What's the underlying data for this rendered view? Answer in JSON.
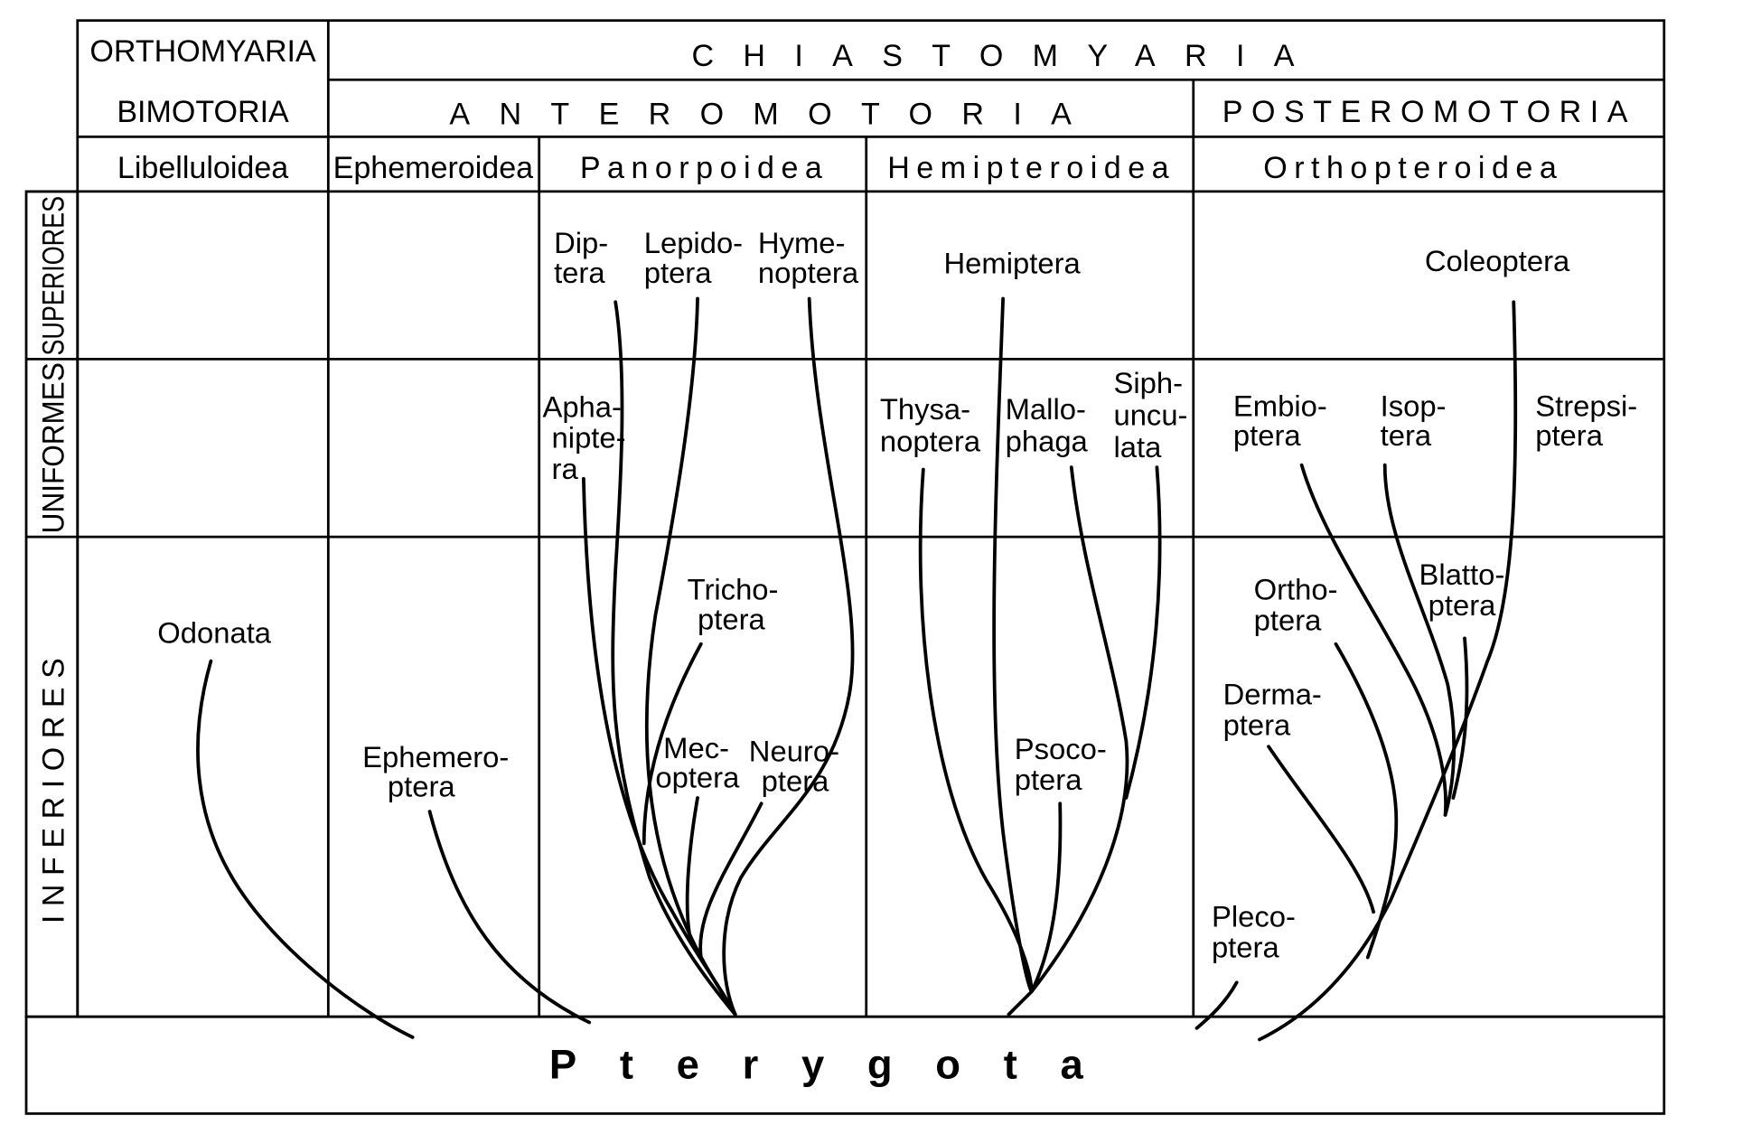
{
  "header": {
    "row1": [
      "ORTHOMYARIA",
      "CHIASTOMYARIA"
    ],
    "row2": [
      "BIMOTORIA",
      "ANTEROMOTORIA",
      "POSTEROMOTORIA"
    ],
    "row3": [
      "Libelluloidea",
      "Ephemeroidea",
      "Panorpoidea",
      "Hemipteroidea",
      "Orthopteroidea"
    ]
  },
  "row_labels": [
    "SUPERIORES",
    "UNIFORMES",
    "INFERIORES"
  ],
  "taxa": [
    {
      "lines": [
        "Odonata"
      ]
    },
    {
      "lines": [
        "Ephemero-",
        "ptera"
      ]
    },
    {
      "lines": [
        "Dip-",
        "tera"
      ]
    },
    {
      "lines": [
        "Lepido-",
        "ptera"
      ]
    },
    {
      "lines": [
        "Hyme-",
        "noptera"
      ]
    },
    {
      "lines": [
        "Apha-",
        "nipte-",
        "ra"
      ]
    },
    {
      "lines": [
        "Tricho-",
        "ptera"
      ]
    },
    {
      "lines": [
        "Mec-",
        "optera"
      ]
    },
    {
      "lines": [
        "Neuro-",
        "ptera"
      ]
    },
    {
      "lines": [
        "Hemiptera"
      ]
    },
    {
      "lines": [
        "Thysa-",
        "noptera"
      ]
    },
    {
      "lines": [
        "Mallo-",
        "phaga"
      ]
    },
    {
      "lines": [
        "Siph-",
        "uncu-",
        "lata"
      ]
    },
    {
      "lines": [
        "Psoco-",
        "ptera"
      ]
    },
    {
      "lines": [
        "Coleoptera"
      ]
    },
    {
      "lines": [
        "Embio-",
        "ptera"
      ]
    },
    {
      "lines": [
        "Isop-",
        "tera"
      ]
    },
    {
      "lines": [
        "Strepsi-",
        "ptera"
      ]
    },
    {
      "lines": [
        "Blatto-",
        "ptera"
      ]
    },
    {
      "lines": [
        "Ortho-",
        "ptera"
      ]
    },
    {
      "lines": [
        "Derma-",
        "ptera"
      ]
    },
    {
      "lines": [
        "Pleco-",
        "ptera"
      ]
    }
  ],
  "root": "Pterygota"
}
